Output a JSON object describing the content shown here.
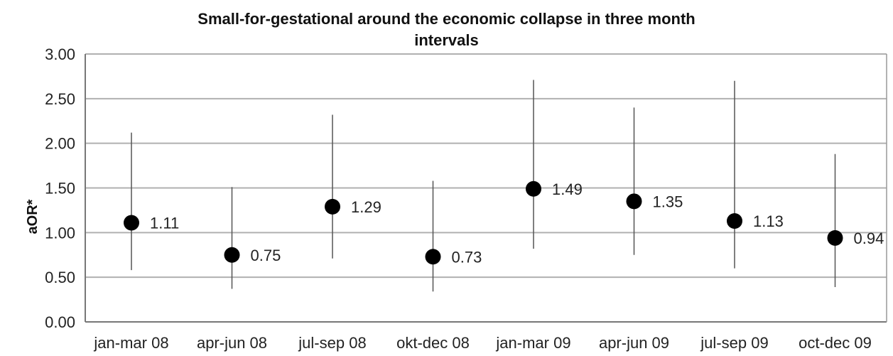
{
  "chart_data": {
    "type": "scatter",
    "title_line1": "Small-for-gestational around the economic collapse in three month",
    "title_line2": "intervals",
    "xlabel": "",
    "ylabel": "aOR*",
    "ylim": [
      0,
      3
    ],
    "yticks": [
      "0.00",
      "0.50",
      "1.00",
      "1.50",
      "2.00",
      "2.50",
      "3.00"
    ],
    "grid": true,
    "categories": [
      "jan-mar 08",
      "apr-jun 08",
      "jul-sep 08",
      "okt-dec 08",
      "jan-mar 09",
      "apr-jun 09",
      "jul-sep 09",
      "oct-dec 09"
    ],
    "values": [
      1.11,
      0.75,
      1.29,
      0.73,
      1.49,
      1.35,
      1.13,
      0.94
    ],
    "value_labels": [
      "1.11",
      "0.75",
      "1.29",
      "0.73",
      "1.49",
      "1.35",
      "1.13",
      "0.94"
    ],
    "error_low": [
      0.58,
      0.37,
      0.71,
      0.34,
      0.82,
      0.75,
      0.6,
      0.39
    ],
    "error_high": [
      2.12,
      1.51,
      2.32,
      1.58,
      2.71,
      2.4,
      2.7,
      1.88
    ],
    "marker_color": "#000000",
    "grid_color": "#b0b0b0"
  }
}
